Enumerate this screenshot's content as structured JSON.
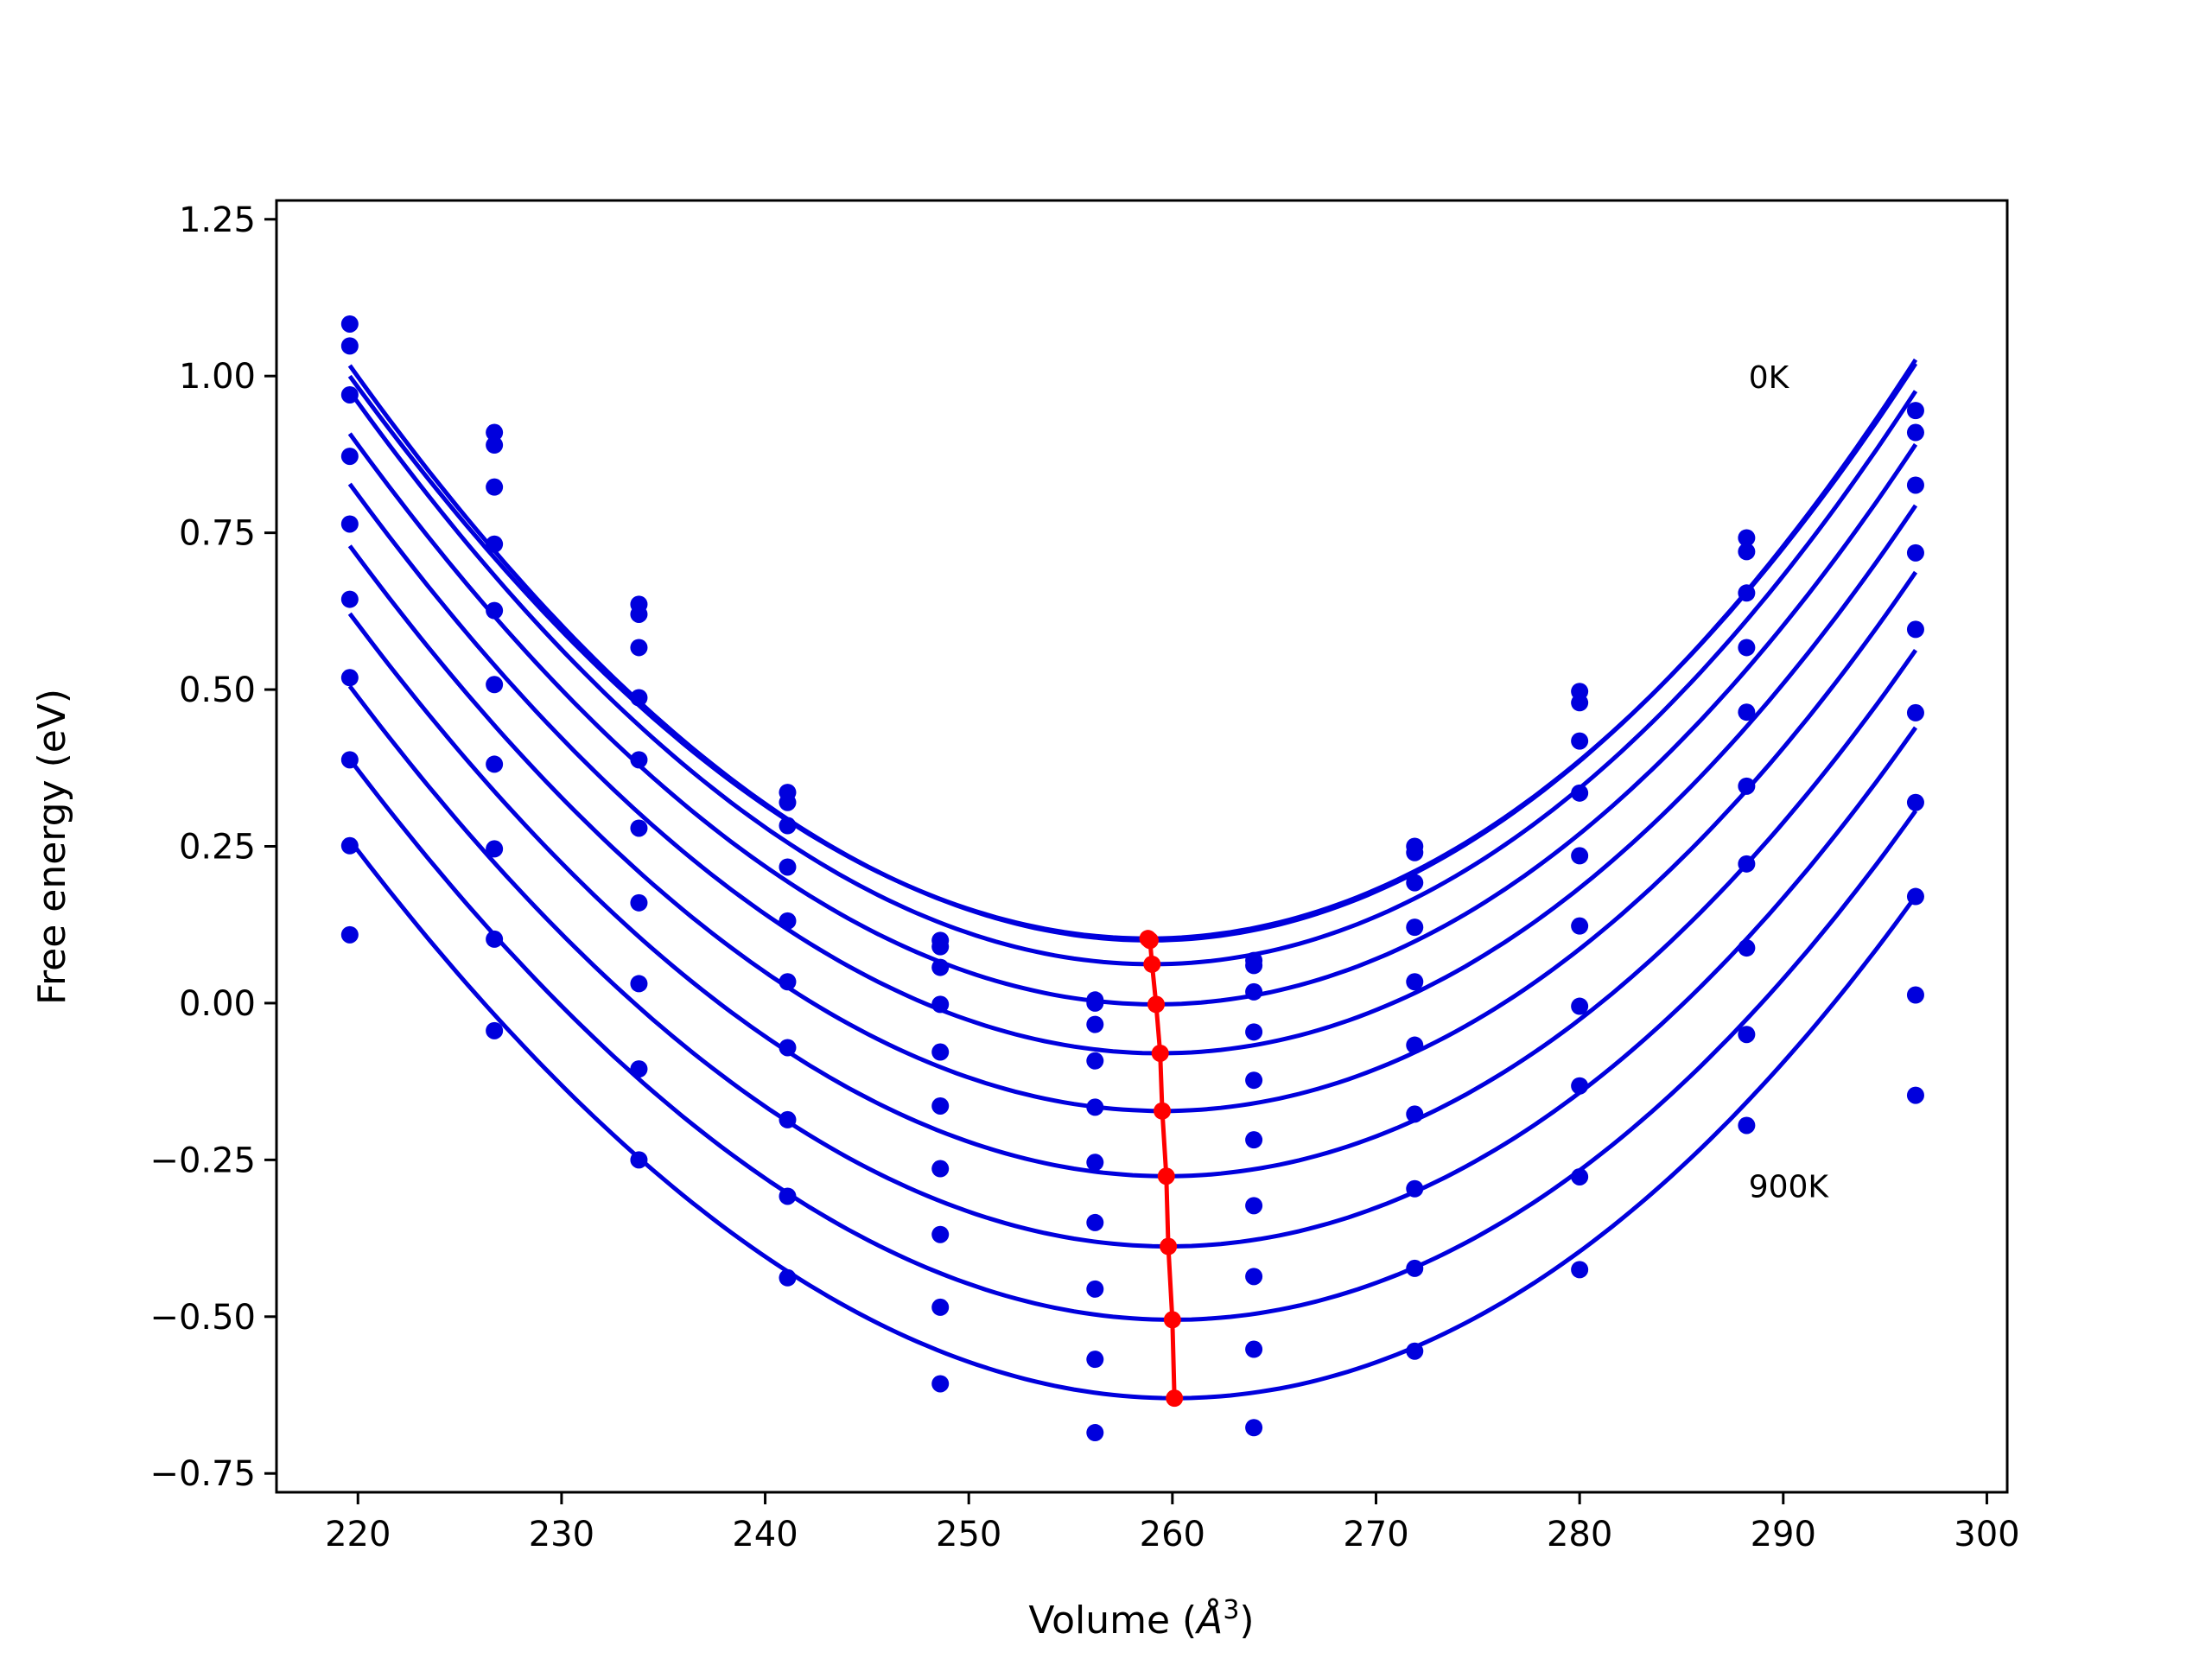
{
  "chart_data": {
    "type": "scatter",
    "title": "",
    "xlabel_prefix": "Volume (",
    "xlabel_symbol": "Å",
    "xlabel_sup": "3",
    "xlabel_suffix": ")",
    "ylabel": "Free energy (eV)",
    "xlim": [
      216,
      301
    ],
    "ylim": [
      -0.78,
      1.28
    ],
    "xticks": [
      220,
      230,
      240,
      250,
      260,
      270,
      280,
      290,
      300
    ],
    "yticks": [
      -0.75,
      -0.5,
      -0.25,
      0.0,
      0.25,
      0.5,
      0.75,
      1.0,
      1.25
    ],
    "ytick_labels": [
      "−0.75",
      "−0.50",
      "−0.25",
      "0.00",
      "0.25",
      "0.50",
      "0.75",
      "1.00",
      "1.25"
    ],
    "xtick_labels": [
      "220",
      "230",
      "240",
      "250",
      "260",
      "270",
      "280",
      "290",
      "300"
    ],
    "grid": false,
    "annotations": [
      {
        "text": "0K",
        "x": 288.3,
        "y": 1.0
      },
      {
        "text": "900K",
        "x": 288.3,
        "y": -0.29
      }
    ],
    "curve_color": "#0000dd",
    "point_color": "#0000dd",
    "minima_color": "#ff0000",
    "volumes": [
      219.6,
      226.7,
      233.8,
      241.1,
      248.6,
      256.2,
      264.0,
      271.9,
      280.0,
      288.2,
      296.5
    ],
    "fits": [
      {
        "v0": 258.8,
        "e0": 0.103,
        "a": 0.000615,
        "b": 8e-07
      },
      {
        "v0": 258.9,
        "e0": 0.1,
        "a": 0.000625,
        "b": 8e-07
      },
      {
        "v0": 259.0,
        "e0": 0.062,
        "a": 0.00062,
        "b": 8e-07
      },
      {
        "v0": 259.2,
        "e0": -0.002,
        "a": 0.000612,
        "b": 8e-07
      },
      {
        "v0": 259.4,
        "e0": -0.08,
        "a": 0.000605,
        "b": 8e-07
      },
      {
        "v0": 259.5,
        "e0": -0.172,
        "a": 0.000598,
        "b": 8e-07
      },
      {
        "v0": 259.7,
        "e0": -0.276,
        "a": 0.00059,
        "b": 8e-07
      },
      {
        "v0": 259.8,
        "e0": -0.388,
        "a": 0.000585,
        "b": 8e-07
      },
      {
        "v0": 260.0,
        "e0": -0.505,
        "a": 0.00058,
        "b": 8e-07
      },
      {
        "v0": 260.1,
        "e0": -0.63,
        "a": 0.000575,
        "b": 8e-07
      }
    ],
    "series": [
      {
        "points": [
          1.083,
          0.91,
          0.636,
          0.336,
          0.1,
          0.005,
          0.068,
          0.25,
          0.497,
          0.742,
          0.945
        ]
      },
      {
        "points": [
          1.048,
          0.89,
          0.62,
          0.32,
          0.09,
          0.0,
          0.06,
          0.24,
          0.479,
          0.72,
          0.91
        ]
      },
      {
        "points": [
          0.97,
          0.823,
          0.567,
          0.283,
          0.057,
          -0.034,
          0.018,
          0.192,
          0.418,
          0.654,
          0.826
        ]
      },
      {
        "points": [
          0.872,
          0.732,
          0.487,
          0.217,
          -0.002,
          -0.092,
          -0.046,
          0.121,
          0.335,
          0.567,
          0.718
        ]
      },
      {
        "points": [
          0.764,
          0.626,
          0.388,
          0.131,
          -0.078,
          -0.166,
          -0.123,
          0.034,
          0.235,
          0.464,
          0.596
        ]
      },
      {
        "points": [
          0.644,
          0.508,
          0.279,
          0.034,
          -0.164,
          -0.254,
          -0.218,
          -0.067,
          0.123,
          0.346,
          0.463
        ]
      },
      {
        "points": [
          0.519,
          0.381,
          0.16,
          -0.071,
          -0.264,
          -0.35,
          -0.323,
          -0.177,
          -0.005,
          0.222,
          0.32
        ]
      },
      {
        "points": [
          0.388,
          0.246,
          0.031,
          -0.186,
          -0.369,
          -0.456,
          -0.436,
          -0.296,
          -0.132,
          0.088,
          0.17
        ]
      },
      {
        "points": [
          0.251,
          0.102,
          -0.105,
          -0.308,
          -0.485,
          -0.568,
          -0.552,
          -0.423,
          -0.277,
          -0.05,
          0.013
        ]
      },
      {
        "points": [
          0.109,
          -0.044,
          -0.25,
          -0.438,
          -0.607,
          -0.685,
          -0.677,
          -0.555,
          -0.425,
          -0.195,
          -0.147
        ]
      }
    ],
    "minima": {
      "x": [
        258.8,
        258.9,
        259.0,
        259.2,
        259.4,
        259.5,
        259.7,
        259.8,
        260.0,
        260.1
      ],
      "y": [
        0.103,
        0.1,
        0.062,
        -0.002,
        -0.08,
        -0.172,
        -0.276,
        -0.388,
        -0.505,
        -0.63
      ]
    }
  }
}
